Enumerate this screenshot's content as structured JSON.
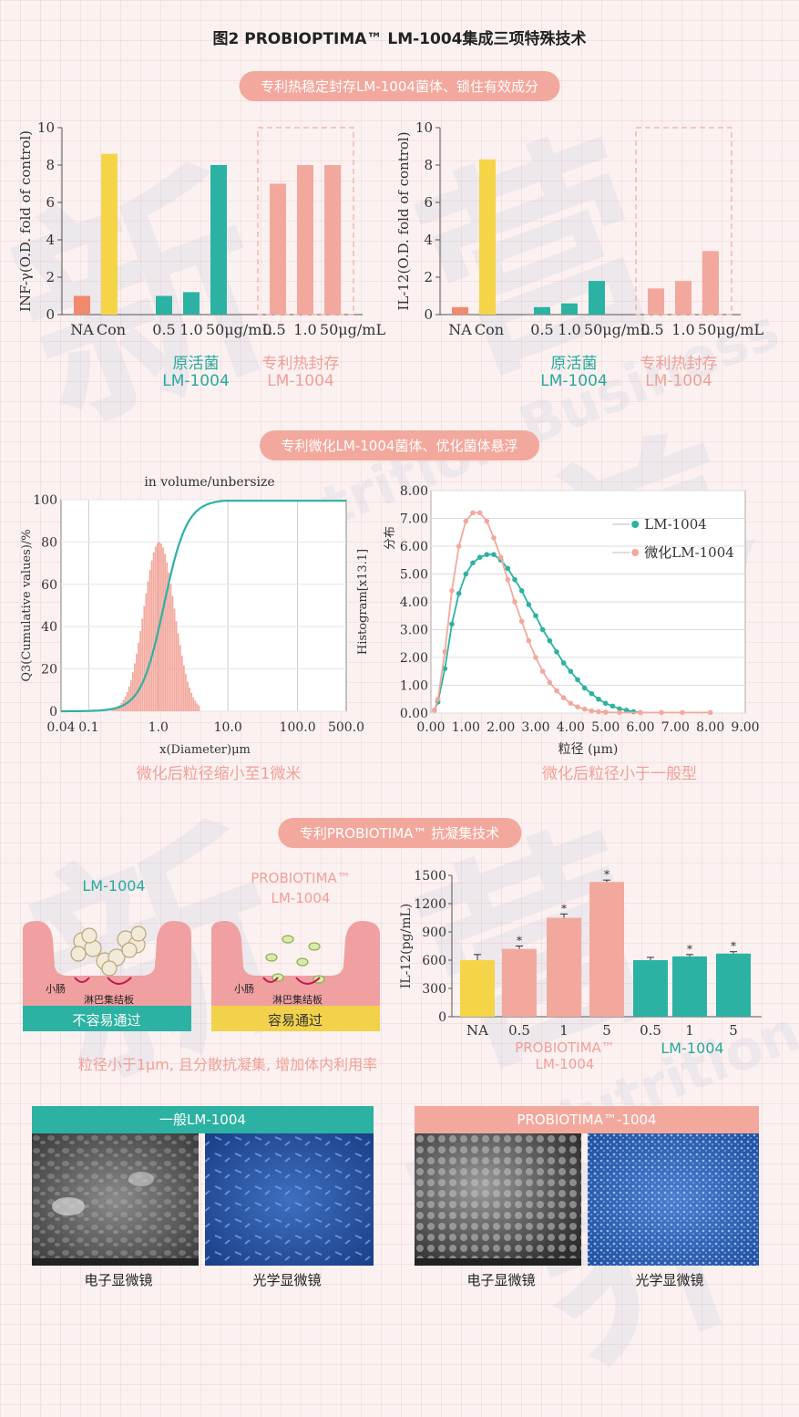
{
  "title": "图2 PROBIOPTIMA™ LM-1004集成三项特殊技术",
  "banners": {
    "b1": "专利热稳定封存LM-1004菌体、锁住有效成分",
    "b2": "专利微化LM-1004菌体、优化菌体悬浮",
    "b3": "专利PROBIOTIMA™ 抗凝集技术"
  },
  "section1": {
    "left_chart_ylabel": "INF-γ(O.D. fold of control)",
    "right_chart_ylabel": "IL-12(O.D. fold of control)",
    "caption_left_1": "原活菌",
    "caption_left_2": "LM-1004",
    "caption_right_1": "专利热封存",
    "caption_right_2": "LM-1004",
    "caption_left_1b": "原活菌",
    "caption_left_2b": "LM-1004",
    "caption_right_1b": "专利热封存",
    "caption_right_2b": "LM-1004"
  },
  "section2": {
    "left_caption": "微化后粒径缩小至1微米",
    "right_caption": "微化后粒径小于一般型"
  },
  "section3": {
    "label_left": "LM-1004",
    "label_right_1": "PROBIOTIMA™",
    "label_right_2": "LM-1004",
    "tissue_small_intestine": "小肠",
    "tissue_lymph": "淋巴集结板",
    "not_easy": "不容易通过",
    "easy": "容易通过",
    "caption": "粒径小于1μm, 且分散抗凝集, 增加体内利用率",
    "bar_group_pink_1": "PROBIOTIMA™",
    "bar_group_pink_2": "LM-1004",
    "bar_group_teal": "LM-1004"
  },
  "section4": {
    "left_head": "一般LM-1004",
    "right_head": "PROBIOTIMA™-1004",
    "em": "电子显微镜",
    "om": "光学显微镜"
  },
  "watermark": "Neu Nutrition Business",
  "chart_data": [
    {
      "id": "inf_gamma",
      "type": "bar",
      "ylabel": "INF-γ(O.D. fold of control)",
      "ylim": [
        0,
        10
      ],
      "yticks": [
        0,
        2,
        4,
        6,
        8,
        10
      ],
      "tick_labels": [
        "NA",
        "Con",
        "0.5",
        "1.0",
        "50μg/mL",
        "0.5",
        "1.0",
        "50μg/mL"
      ],
      "values": [
        1.0,
        8.6,
        1.0,
        1.2,
        8.0,
        7.0,
        8.0,
        8.0
      ],
      "colors": [
        "#ef8a6e",
        "#f5d547",
        "#2bb2a3",
        "#2bb2a3",
        "#2bb2a3",
        "#f3a89d",
        "#f3a89d",
        "#f3a89d"
      ]
    },
    {
      "id": "il12_fold",
      "type": "bar",
      "ylabel": "IL-12(O.D. fold of control)",
      "ylim": [
        0,
        10
      ],
      "yticks": [
        0,
        2,
        4,
        6,
        8,
        10
      ],
      "tick_labels": [
        "NA",
        "Con",
        "0.5",
        "1.0",
        "50μg/mL",
        "0.5",
        "1.0",
        "50μg/mL"
      ],
      "values": [
        0.4,
        8.3,
        0.4,
        0.6,
        1.8,
        1.4,
        1.8,
        3.4
      ],
      "colors": [
        "#ef8a6e",
        "#f5d547",
        "#2bb2a3",
        "#2bb2a3",
        "#2bb2a3",
        "#f3a89d",
        "#f3a89d",
        "#f3a89d"
      ]
    },
    {
      "id": "particle_size_distribution",
      "type": "area",
      "title": "in volume/unbersize",
      "xlabel": "x(Diameter)μm",
      "ylabel": "Q3(Cumulative values)/%",
      "xscale": "log",
      "xlim": [
        0.04,
        500
      ],
      "ylim": [
        0,
        100
      ],
      "xticks": [
        0.04,
        0.1,
        1.0,
        10.0,
        100.0,
        500.0
      ],
      "xtick_labels": [
        "0.04",
        "0.1",
        "1.0",
        "10.0",
        "100.0",
        "500.0"
      ],
      "yticks": [
        0,
        20,
        40,
        60,
        80,
        100
      ],
      "histogram_peak_x": 1.0,
      "histogram_peak_y": 80,
      "cumulative_median_x": 1.2
    },
    {
      "id": "histogram_compare",
      "type": "line",
      "xlabel": "粒径 (μm)",
      "ylabel": "Histogram[x13.1]",
      "ylabel2": "分布",
      "xlim": [
        0,
        9
      ],
      "ylim": [
        0,
        8
      ],
      "xticks": [
        0,
        1,
        2,
        3,
        4,
        5,
        6,
        7,
        8,
        9
      ],
      "xtick_labels": [
        "0.00",
        "1.00",
        "2.00",
        "3.00",
        "4.00",
        "5.00",
        "6.00",
        "7.00",
        "8.00",
        "9.00"
      ],
      "yticks": [
        0,
        1,
        2,
        3,
        4,
        5,
        6,
        7,
        8
      ],
      "ytick_labels": [
        "0.00",
        "1.00",
        "2.00",
        "3.00",
        "4.00",
        "5.00",
        "6.00",
        "7.00",
        "8.00"
      ],
      "series": [
        {
          "name": "LM-1004",
          "color": "#2bb2a3",
          "x": [
            0.1,
            0.2,
            0.4,
            0.6,
            0.8,
            1.0,
            1.2,
            1.4,
            1.6,
            1.8,
            2.0,
            2.2,
            2.4,
            2.6,
            2.8,
            3.0,
            3.2,
            3.4,
            3.6,
            3.8,
            4.0,
            4.2,
            4.4,
            4.6,
            4.8,
            5.0,
            5.2,
            5.4,
            5.6,
            5.8,
            6.0
          ],
          "y": [
            0.1,
            0.4,
            1.6,
            3.2,
            4.3,
            5.0,
            5.4,
            5.6,
            5.7,
            5.7,
            5.5,
            5.2,
            4.8,
            4.4,
            3.9,
            3.5,
            3.0,
            2.6,
            2.2,
            1.8,
            1.5,
            1.2,
            0.9,
            0.7,
            0.5,
            0.35,
            0.25,
            0.15,
            0.1,
            0.05,
            0.02
          ]
        },
        {
          "name": "微化LM-1004",
          "color": "#f3a89d",
          "x": [
            0.1,
            0.2,
            0.4,
            0.6,
            0.8,
            1.0,
            1.2,
            1.4,
            1.6,
            1.8,
            2.0,
            2.2,
            2.4,
            2.6,
            2.8,
            3.0,
            3.2,
            3.4,
            3.6,
            3.8,
            4.0,
            4.2,
            4.4,
            4.6,
            4.8,
            5.0,
            5.4,
            6.0,
            6.6,
            7.2,
            8.0
          ],
          "y": [
            0.1,
            0.5,
            2.2,
            4.4,
            6.0,
            6.9,
            7.2,
            7.2,
            6.9,
            6.3,
            5.6,
            4.8,
            4.0,
            3.3,
            2.6,
            2.0,
            1.5,
            1.1,
            0.8,
            0.55,
            0.35,
            0.22,
            0.14,
            0.08,
            0.05,
            0.03,
            0.02,
            0.02,
            0.02,
            0.02,
            0.02
          ]
        }
      ]
    },
    {
      "id": "il12_pg",
      "type": "bar",
      "ylabel": "IL-12(pg/mL)",
      "ylim": [
        0,
        1500
      ],
      "yticks": [
        0,
        300,
        600,
        900,
        1200,
        1500
      ],
      "tick_labels": [
        "NA",
        "0.5",
        "1",
        "5",
        "0.5",
        "1",
        "5"
      ],
      "values": [
        600,
        720,
        1050,
        1430,
        600,
        640,
        670
      ],
      "errors": [
        60,
        30,
        40,
        20,
        30,
        20,
        20
      ],
      "significant": [
        false,
        true,
        true,
        true,
        false,
        true,
        true
      ],
      "colors": [
        "#f5d547",
        "#f3a89d",
        "#f3a89d",
        "#f3a89d",
        "#2bb2a3",
        "#2bb2a3",
        "#2bb2a3"
      ]
    }
  ]
}
